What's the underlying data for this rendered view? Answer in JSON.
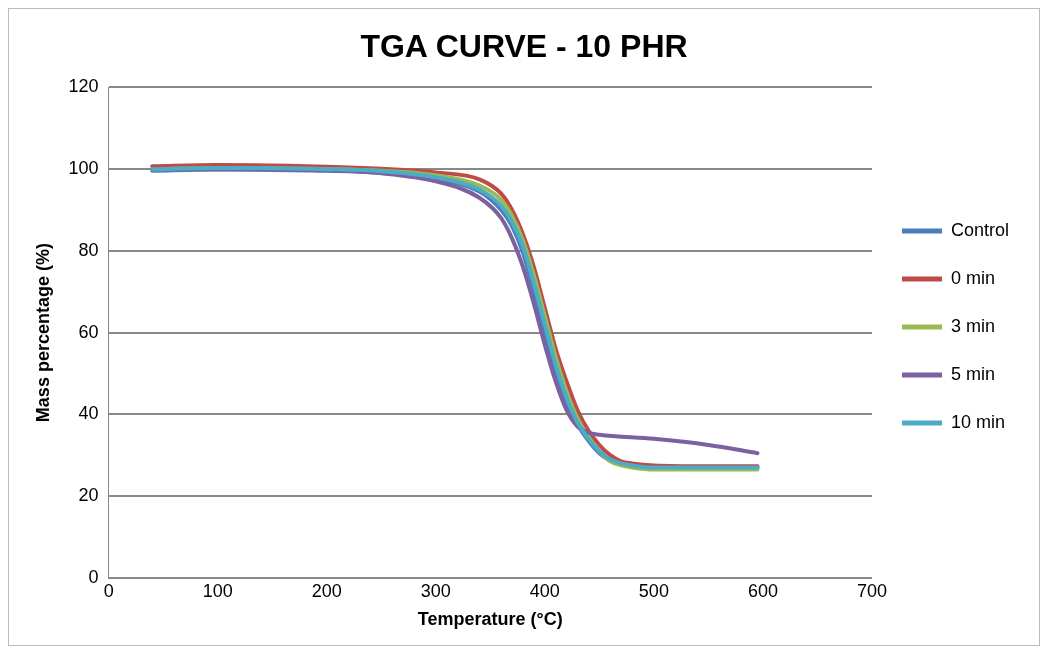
{
  "chart_data": {
    "type": "line",
    "title": "TGA CURVE - 10 PHR",
    "xlabel": "Temperature (°C)",
    "ylabel": "Mass percentage (%)",
    "xlim": [
      0,
      700
    ],
    "xticks": [
      0,
      100,
      200,
      300,
      400,
      500,
      600,
      700
    ],
    "ylim": [
      0,
      120
    ],
    "yticks": [
      0,
      20,
      40,
      60,
      80,
      100,
      120
    ],
    "grid": "y",
    "legend": "right",
    "marker": "none",
    "line_style": "solid",
    "series": [
      {
        "name": "Control",
        "color": "#4a7ebb",
        "x": [
          40,
          100,
          200,
          250,
          300,
          340,
          360,
          370,
          380,
          390,
          400,
          410,
          420,
          430,
          440,
          450,
          460,
          470,
          480,
          500,
          550,
          595
        ],
        "values": [
          99.6,
          99.9,
          99.6,
          99.1,
          97.5,
          94.5,
          90,
          86,
          79.5,
          70,
          60,
          50.5,
          43,
          37.5,
          33.5,
          30.5,
          28.7,
          27.8,
          27.3,
          26.9,
          26.9,
          26.9
        ]
      },
      {
        "name": "0 min",
        "color": "#be4b48",
        "x": [
          40,
          100,
          200,
          250,
          300,
          340,
          360,
          370,
          380,
          390,
          400,
          410,
          420,
          430,
          440,
          450,
          460,
          470,
          480,
          500,
          550,
          595
        ],
        "values": [
          100.7,
          101,
          100.6,
          100.1,
          99.2,
          97.5,
          94,
          90,
          84,
          76,
          66,
          56,
          48,
          41,
          36,
          32.5,
          30,
          28.5,
          28,
          27.5,
          27.3,
          27.3
        ]
      },
      {
        "name": "3 min",
        "color": "#98b954",
        "x": [
          40,
          100,
          200,
          250,
          300,
          340,
          360,
          370,
          380,
          390,
          400,
          410,
          420,
          430,
          440,
          450,
          460,
          470,
          480,
          500,
          550,
          595
        ],
        "values": [
          100,
          100.3,
          100,
          99.6,
          98.5,
          96,
          92.5,
          88.5,
          82.5,
          74,
          64,
          54,
          45.5,
          39,
          34.5,
          31,
          28.5,
          27.5,
          27,
          26.5,
          26.5,
          26.5
        ]
      },
      {
        "name": "5 min",
        "color": "#7d60a0",
        "x": [
          40,
          100,
          200,
          250,
          300,
          340,
          360,
          370,
          380,
          390,
          400,
          410,
          420,
          430,
          440,
          450,
          500,
          550,
          595
        ],
        "values": [
          100,
          100,
          99.7,
          99,
          97,
          93,
          88,
          83,
          76,
          67,
          57,
          48,
          41,
          37,
          35.5,
          35,
          34,
          32.5,
          30.5
        ]
      },
      {
        "name": "10 min",
        "color": "#4bacc6",
        "x": [
          40,
          100,
          200,
          250,
          300,
          340,
          360,
          370,
          380,
          390,
          400,
          410,
          420,
          430,
          440,
          450,
          460,
          470,
          480,
          500,
          550,
          595
        ],
        "values": [
          100,
          100.3,
          100,
          99.5,
          98,
          95,
          91,
          87,
          81,
          72,
          62,
          52,
          44,
          38,
          34,
          31,
          29,
          28,
          27.5,
          27,
          27,
          27
        ]
      }
    ]
  }
}
